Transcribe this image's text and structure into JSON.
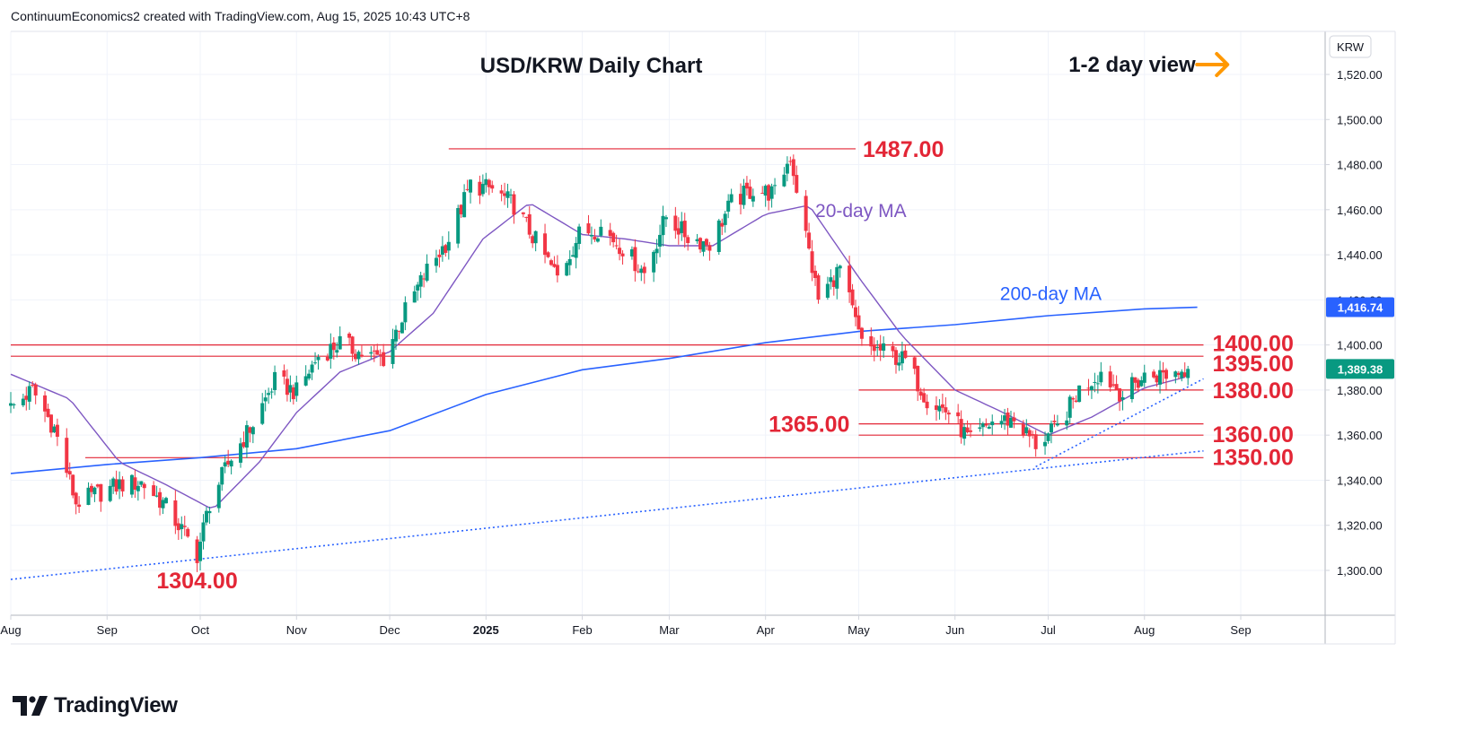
{
  "header": {
    "credit": "ContinuumEconomics2 created with TradingView.com, Aug 15, 2025 10:43 UTC+8"
  },
  "brand": {
    "name": "TradingView"
  },
  "colors": {
    "up": "#089981",
    "down": "#f23645",
    "level_line": "#e32636",
    "ma20": "#7e57c2",
    "ma200": "#2962ff",
    "trend": "#2962ff",
    "arrow": "#ff9800",
    "grid": "#f0f3fa"
  },
  "chart_data": {
    "type": "candlestick",
    "title": "USD/KRW Daily Chart",
    "view_label": "1-2 day view",
    "view_direction": "right-arrow",
    "currency_label": "KRW",
    "ylim": [
      1280,
      1540
    ],
    "y_ticks": [
      "1,300.00",
      "1,320.00",
      "1,340.00",
      "1,360.00",
      "1,380.00",
      "1,400.00",
      "1,420.00",
      "1,440.00",
      "1,460.00",
      "1,480.00",
      "1,500.00",
      "1,520.00"
    ],
    "x_ticks": [
      {
        "label": "Aug",
        "date": "2024-08-01"
      },
      {
        "label": "Sep",
        "date": "2024-09-01"
      },
      {
        "label": "Oct",
        "date": "2024-10-01"
      },
      {
        "label": "Nov",
        "date": "2024-11-01"
      },
      {
        "label": "Dec",
        "date": "2024-12-01"
      },
      {
        "label": "2025",
        "date": "2025-01-01"
      },
      {
        "label": "Feb",
        "date": "2025-02-01"
      },
      {
        "label": "Mar",
        "date": "2025-03-01"
      },
      {
        "label": "Apr",
        "date": "2025-04-01"
      },
      {
        "label": "May",
        "date": "2025-05-01"
      },
      {
        "label": "Jun",
        "date": "2025-06-01"
      },
      {
        "label": "Jul",
        "date": "2025-07-01"
      },
      {
        "label": "Aug",
        "date": "2025-08-01"
      },
      {
        "label": "Sep",
        "date": "2025-09-01"
      }
    ],
    "price_labels": [
      {
        "label": "1,416.74",
        "value": 1416.74,
        "color": "#2962ff"
      },
      {
        "label": "1,389.38",
        "value": 1389.38,
        "color": "#089981"
      }
    ],
    "levels": [
      {
        "label": "1487.00",
        "value": 1487,
        "from": "2024-12-20",
        "to": "2025-04-30"
      },
      {
        "label": "1400.00",
        "value": 1400,
        "from": "2024-08-01",
        "to": "2025-08-20"
      },
      {
        "label": "1395.00",
        "value": 1395,
        "from": "2024-08-01",
        "to": "2025-08-20"
      },
      {
        "label": "1380.00",
        "value": 1380,
        "from": "2025-05-01",
        "to": "2025-08-20"
      },
      {
        "label": "1365.00",
        "value": 1365,
        "from": "2025-05-01",
        "to": "2025-08-20"
      },
      {
        "label": "1360.00",
        "value": 1360,
        "from": "2025-05-01",
        "to": "2025-08-20"
      },
      {
        "label": "1350.00",
        "value": 1350,
        "from": "2024-08-25",
        "to": "2025-08-20"
      },
      {
        "label": "1304.00",
        "value": 1304
      }
    ],
    "annotations": [
      {
        "label": "20-day MA",
        "color": "#7e57c2"
      },
      {
        "label": "200-day MA",
        "color": "#2962ff"
      }
    ],
    "trendlines": [
      {
        "from": [
          "2024-08-01",
          1296
        ],
        "to": [
          "2025-08-20",
          1353
        ]
      },
      {
        "from": [
          "2025-06-27",
          1346
        ],
        "to": [
          "2025-08-20",
          1385
        ]
      }
    ],
    "ma200": [
      [
        "2024-08-01",
        1343
      ],
      [
        "2024-09-01",
        1347
      ],
      [
        "2024-10-01",
        1350
      ],
      [
        "2024-11-01",
        1354
      ],
      [
        "2024-12-01",
        1362
      ],
      [
        "2025-01-01",
        1378
      ],
      [
        "2025-02-01",
        1389
      ],
      [
        "2025-03-01",
        1394
      ],
      [
        "2025-04-01",
        1401
      ],
      [
        "2025-05-01",
        1406
      ],
      [
        "2025-06-01",
        1409
      ],
      [
        "2025-07-01",
        1413
      ],
      [
        "2025-08-01",
        1416
      ],
      [
        "2025-08-18",
        1416.74
      ]
    ],
    "ma20": [
      [
        "2024-08-01",
        1387
      ],
      [
        "2024-08-20",
        1376
      ],
      [
        "2024-09-05",
        1348
      ],
      [
        "2024-09-20",
        1338
      ],
      [
        "2024-10-05",
        1327
      ],
      [
        "2024-10-20",
        1348
      ],
      [
        "2024-11-01",
        1370
      ],
      [
        "2024-11-15",
        1388
      ],
      [
        "2024-12-01",
        1397
      ],
      [
        "2024-12-15",
        1414
      ],
      [
        "2024-12-31",
        1447
      ],
      [
        "2025-01-15",
        1463
      ],
      [
        "2025-02-01",
        1449
      ],
      [
        "2025-02-15",
        1447
      ],
      [
        "2025-03-01",
        1444
      ],
      [
        "2025-03-15",
        1444
      ],
      [
        "2025-04-01",
        1458
      ],
      [
        "2025-04-15",
        1462
      ],
      [
        "2025-05-01",
        1430
      ],
      [
        "2025-05-15",
        1404
      ],
      [
        "2025-06-01",
        1380
      ],
      [
        "2025-06-15",
        1371
      ],
      [
        "2025-07-01",
        1360
      ],
      [
        "2025-07-15",
        1368
      ],
      [
        "2025-08-01",
        1381
      ],
      [
        "2025-08-15",
        1386
      ]
    ],
    "closes": [
      [
        "2024-08-01",
        1372
      ],
      [
        "2024-08-08",
        1380
      ],
      [
        "2024-08-15",
        1363
      ],
      [
        "2024-08-22",
        1330
      ],
      [
        "2024-08-29",
        1334
      ],
      [
        "2024-09-05",
        1338
      ],
      [
        "2024-09-12",
        1339
      ],
      [
        "2024-09-19",
        1330
      ],
      [
        "2024-09-26",
        1316
      ],
      [
        "2024-09-30",
        1307
      ],
      [
        "2024-10-04",
        1330
      ],
      [
        "2024-10-11",
        1350
      ],
      [
        "2024-10-18",
        1365
      ],
      [
        "2024-10-25",
        1384
      ],
      [
        "2024-11-01",
        1379
      ],
      [
        "2024-11-08",
        1395
      ],
      [
        "2024-11-15",
        1401
      ],
      [
        "2024-11-22",
        1396
      ],
      [
        "2024-11-29",
        1394
      ],
      [
        "2024-12-06",
        1415
      ],
      [
        "2024-12-13",
        1433
      ],
      [
        "2024-12-20",
        1447
      ],
      [
        "2024-12-27",
        1471
      ],
      [
        "2025-01-03",
        1469
      ],
      [
        "2025-01-10",
        1462
      ],
      [
        "2025-01-17",
        1446
      ],
      [
        "2025-01-24",
        1430
      ],
      [
        "2025-01-31",
        1449
      ],
      [
        "2025-02-07",
        1452
      ],
      [
        "2025-02-14",
        1443
      ],
      [
        "2025-02-21",
        1432
      ],
      [
        "2025-02-28",
        1457
      ],
      [
        "2025-03-07",
        1448
      ],
      [
        "2025-03-14",
        1445
      ],
      [
        "2025-03-21",
        1463
      ],
      [
        "2025-03-28",
        1469
      ],
      [
        "2025-04-04",
        1467
      ],
      [
        "2025-04-09",
        1484
      ],
      [
        "2025-04-18",
        1420
      ],
      [
        "2025-04-25",
        1434
      ],
      [
        "2025-05-02",
        1400
      ],
      [
        "2025-05-09",
        1397
      ],
      [
        "2025-05-16",
        1393
      ],
      [
        "2025-05-23",
        1376
      ],
      [
        "2025-05-30",
        1370
      ],
      [
        "2025-06-06",
        1357
      ],
      [
        "2025-06-13",
        1366
      ],
      [
        "2025-06-20",
        1367
      ],
      [
        "2025-06-27",
        1356
      ],
      [
        "2025-07-04",
        1363
      ],
      [
        "2025-07-11",
        1380
      ],
      [
        "2025-07-18",
        1388
      ],
      [
        "2025-07-25",
        1378
      ],
      [
        "2025-08-01",
        1386
      ],
      [
        "2025-08-08",
        1387
      ],
      [
        "2025-08-15",
        1389.38
      ]
    ]
  }
}
